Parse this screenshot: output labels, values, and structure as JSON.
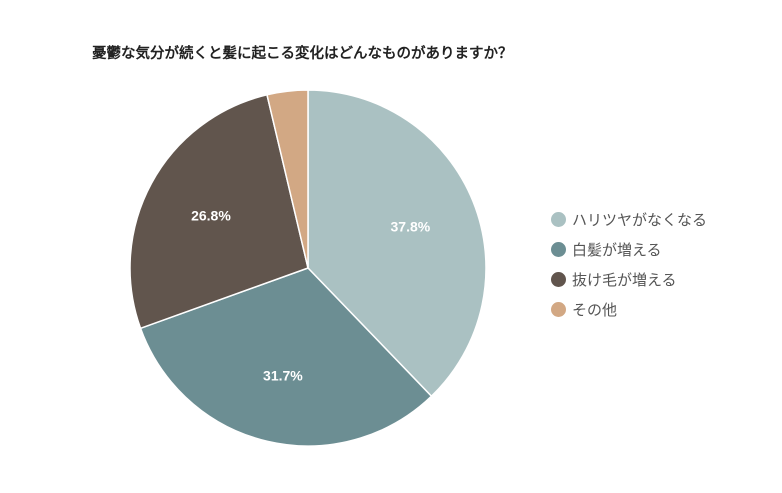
{
  "chart_data": {
    "type": "pie",
    "title": "憂鬱な気分が続くと髪に起こる変化はどんなものがありますか？",
    "categories": [
      "ハリツヤがなくなる",
      "白髪が増える",
      "抜け毛が増える",
      "その他"
    ],
    "values": [
      37.8,
      31.7,
      26.8,
      3.7
    ],
    "value_labels": [
      "37.8%",
      "31.7%",
      "26.8%",
      ""
    ],
    "colors": [
      "#aac1c2",
      "#6c8e93",
      "#61554d",
      "#d2a884"
    ],
    "legend_position": "right",
    "start_angle_deg": 0,
    "direction": "clockwise"
  }
}
